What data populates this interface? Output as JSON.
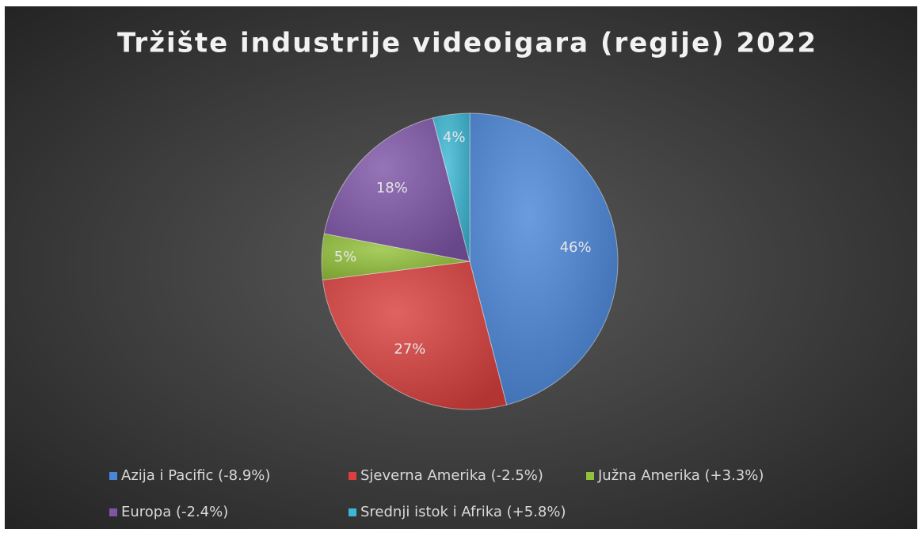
{
  "chart_data": {
    "type": "pie",
    "title": "Tržište industrije videoigara (regije) 2022",
    "categories": [
      "Azija i Pacific (-8.9%)",
      "Sjeverna Amerika (-2.5%)",
      "Južna Amerika (+3.3%)",
      "Europa (-2.4%)",
      "Srednji istok i Afrika (+5.8%)"
    ],
    "values": [
      46,
      27,
      5,
      18,
      4
    ],
    "value_labels": [
      "46%",
      "27%",
      "5%",
      "18%",
      "4%"
    ],
    "colors": [
      "#4a86d8",
      "#d9403e",
      "#93c23a",
      "#7f55a8",
      "#3cb8d4"
    ],
    "legend": "bottom"
  }
}
